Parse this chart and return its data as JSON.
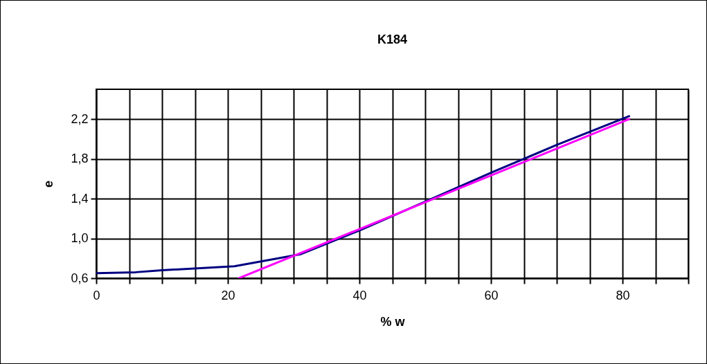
{
  "chart_data": {
    "type": "line",
    "title": "K184",
    "xlabel": "% w",
    "ylabel": "e",
    "xlim": [
      0,
      90
    ],
    "xticks": [
      0,
      {
        "value": 5,
        "label": null
      },
      {
        "value": 10,
        "label": null
      },
      {
        "value": 15,
        "label": null
      },
      20,
      {
        "value": 25,
        "label": null
      },
      {
        "value": 30,
        "label": null
      },
      {
        "value": 35,
        "label": null
      },
      40,
      {
        "value": 45,
        "label": null
      },
      {
        "value": 50,
        "label": null
      },
      {
        "value": 55,
        "label": null
      },
      60,
      {
        "value": 65,
        "label": null
      },
      {
        "value": 70,
        "label": null
      },
      {
        "value": 75,
        "label": null
      },
      80,
      {
        "value": 85,
        "label": null
      },
      {
        "value": 90,
        "label": null
      }
    ],
    "ylim": [
      0.6,
      2.5
    ],
    "yticks": [
      {
        "value": 0.6,
        "label": "0,6"
      },
      {
        "value": 1.0,
        "label": "1,0"
      },
      {
        "value": 1.4,
        "label": "1,4"
      },
      {
        "value": 1.8,
        "label": "1,8"
      },
      {
        "value": 2.2,
        "label": "2,2"
      }
    ],
    "grid": true,
    "legend": false,
    "line_style": "solid",
    "series": [
      {
        "color": "#000080",
        "x": [
          0,
          6,
          10,
          21,
          31,
          40,
          50,
          60,
          70,
          81
        ],
        "values": [
          0.65,
          0.66,
          0.68,
          0.72,
          0.84,
          1.08,
          1.37,
          1.66,
          1.94,
          2.23
        ]
      },
      {
        "type": "line",
        "color": "#ff00ff",
        "x": [
          21.7,
          81
        ],
        "values": [
          0.6,
          2.2
        ]
      }
    ]
  }
}
